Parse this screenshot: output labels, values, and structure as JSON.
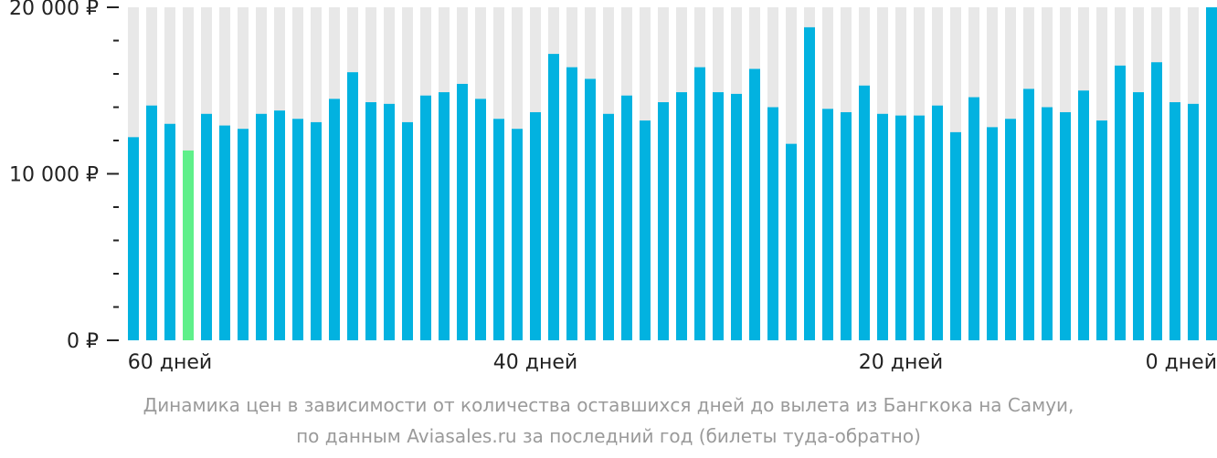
{
  "colors": {
    "bar": "#02b2e0",
    "highlight": "#5ff08a",
    "track": "#e8e8e8",
    "axis": "#222222",
    "caption": "#9a9a9a"
  },
  "chart_data": {
    "type": "bar",
    "ylim": [
      0,
      20000
    ],
    "y_ticks": [
      {
        "value": 0,
        "label": "0 ₽"
      },
      {
        "value": 10000,
        "label": "10 000 ₽"
      },
      {
        "value": 20000,
        "label": "20 000 ₽"
      }
    ],
    "y_minor_step": 2000,
    "x_labels": [
      {
        "index": 2,
        "label": "60 дней"
      },
      {
        "index": 22,
        "label": "40 дней"
      },
      {
        "index": 42,
        "label": "20 дней"
      },
      {
        "index": 62,
        "label": "0 дней"
      }
    ],
    "highlight_index": 3,
    "values": [
      12200,
      14100,
      13000,
      11400,
      13600,
      12900,
      12700,
      13600,
      13800,
      13300,
      13100,
      14500,
      16100,
      14300,
      14200,
      13100,
      14700,
      14900,
      15400,
      14500,
      13300,
      12700,
      13700,
      17200,
      16400,
      15700,
      13600,
      14700,
      13200,
      14300,
      14900,
      16400,
      14900,
      14800,
      16300,
      14000,
      11800,
      18800,
      13900,
      13700,
      15300,
      13600,
      13500,
      13500,
      14100,
      12500,
      14600,
      12800,
      13300,
      15100,
      14000,
      13700,
      15000,
      13200,
      16500,
      14900,
      16700,
      14300,
      14200,
      20100
    ]
  },
  "caption": {
    "line1": "Динамика цен в зависимости от количества оставшихся дней до вылета из Бангкока на Самуи,",
    "line2": "по данным Aviasales.ru за последний год (билеты туда-обратно)"
  }
}
